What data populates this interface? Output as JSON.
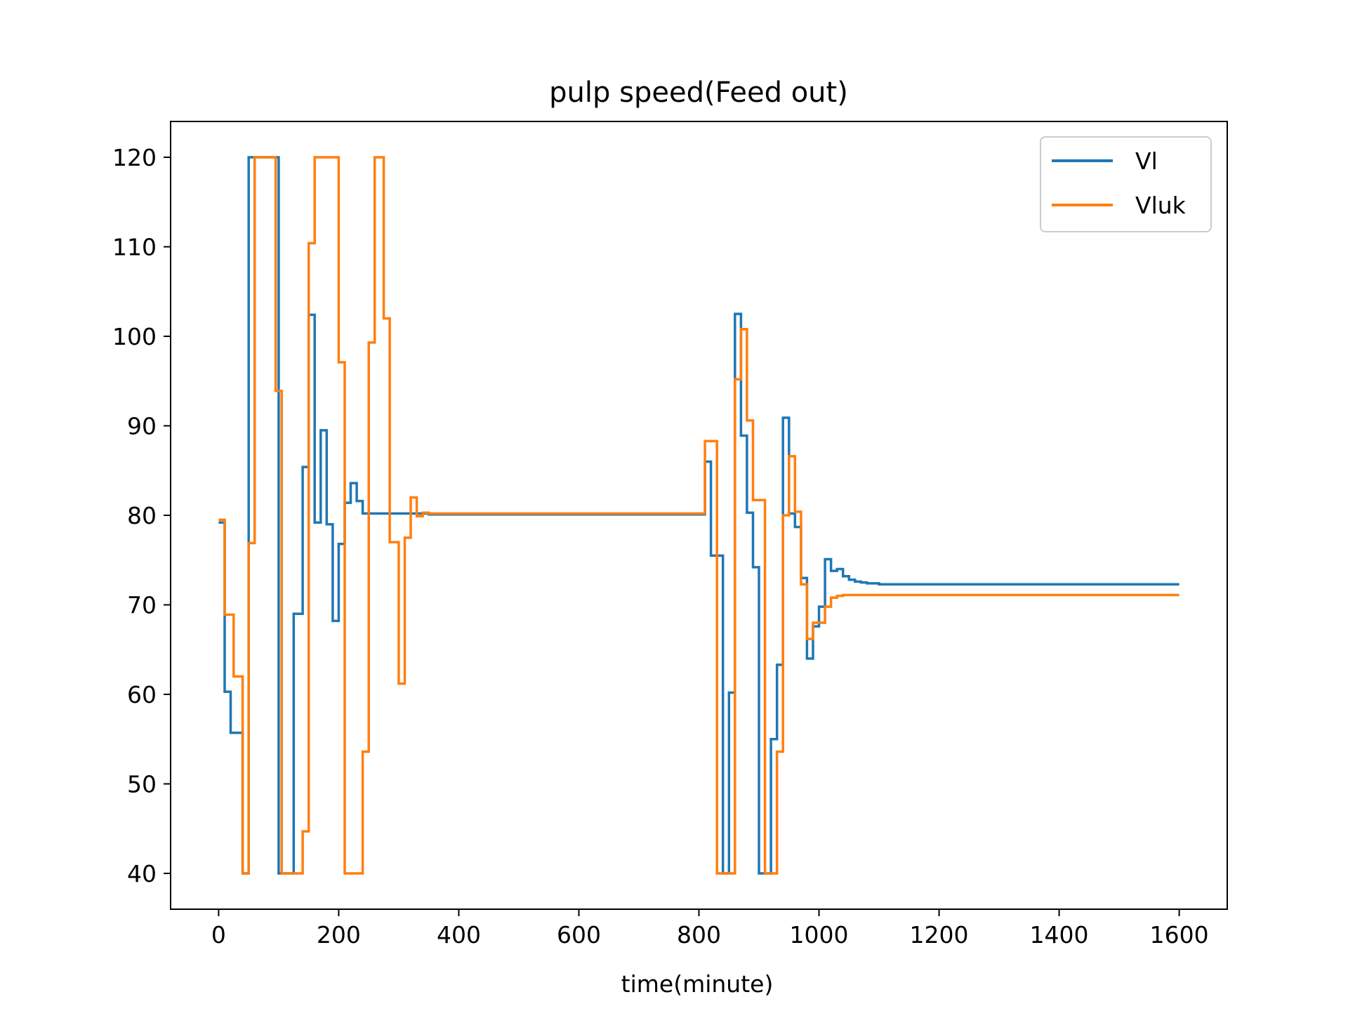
{
  "chart_data": {
    "type": "line",
    "title": "pulp speed(Feed out)",
    "xlabel": "time(minute)",
    "ylabel": "",
    "xlim": [
      -80,
      1680
    ],
    "ylim": [
      36,
      124
    ],
    "xticks": [
      0,
      200,
      400,
      600,
      800,
      1000,
      1200,
      1400,
      1600
    ],
    "yticks": [
      40,
      50,
      60,
      70,
      80,
      90,
      100,
      110,
      120
    ],
    "legend_position": "top-right",
    "grid": false,
    "series": [
      {
        "name": "Vl",
        "color": "#1f77b4",
        "step": true,
        "x": [
          0,
          10,
          20,
          30,
          40,
          50,
          100,
          115,
          125,
          140,
          150,
          160,
          170,
          180,
          190,
          200,
          210,
          220,
          230,
          240,
          250,
          300,
          350,
          400,
          500,
          600,
          700,
          800,
          810,
          820,
          840,
          850,
          860,
          870,
          880,
          890,
          900,
          910,
          920,
          930,
          940,
          950,
          960,
          970,
          980,
          990,
          1000,
          1010,
          1020,
          1030,
          1040,
          1050,
          1060,
          1070,
          1080,
          1100,
          1150,
          1200,
          1300,
          1400,
          1500,
          1600
        ],
        "values": [
          79.2,
          60.3,
          55.7,
          55.7,
          40,
          120,
          40,
          40,
          69,
          85.4,
          102.4,
          79.2,
          89.5,
          79,
          68.2,
          76.8,
          81.4,
          83.6,
          81.6,
          80.2,
          80.2,
          80.2,
          80.1,
          80.1,
          80.1,
          80.1,
          80.1,
          80.1,
          86,
          75.5,
          40,
          60.2,
          102.5,
          88.9,
          80.3,
          74.2,
          40,
          40,
          55,
          63.3,
          90.9,
          80.2,
          78.7,
          73,
          64,
          67.6,
          69.8,
          75.1,
          73.8,
          74,
          73.2,
          72.8,
          72.6,
          72.5,
          72.4,
          72.3,
          72.3,
          72.3,
          72.3,
          72.3,
          72.3,
          72.3
        ]
      },
      {
        "name": "Vluk",
        "color": "#ff7f0e",
        "step": true,
        "x": [
          0,
          10,
          25,
          40,
          50,
          60,
          95,
          105,
          115,
          140,
          150,
          160,
          170,
          200,
          210,
          220,
          240,
          250,
          260,
          275,
          285,
          300,
          310,
          320,
          330,
          340,
          350,
          400,
          500,
          600,
          700,
          800,
          810,
          830,
          860,
          870,
          880,
          890,
          910,
          930,
          940,
          950,
          960,
          970,
          980,
          990,
          1000,
          1010,
          1020,
          1030,
          1040,
          1050,
          1060,
          1070,
          1080,
          1100,
          1200,
          1400,
          1600
        ],
        "values": [
          79.5,
          68.9,
          62,
          40,
          76.9,
          120,
          93.9,
          40,
          40,
          44.7,
          110.4,
          120,
          120,
          97.1,
          40,
          40,
          53.6,
          99.3,
          120,
          102,
          77,
          61.2,
          77.5,
          82,
          79.9,
          80.3,
          80.2,
          80.2,
          80.2,
          80.2,
          80.2,
          80.2,
          88.3,
          40,
          95.2,
          100.8,
          90.6,
          81.7,
          40,
          53.6,
          80,
          86.6,
          80.4,
          72.3,
          66.2,
          68,
          68,
          69.8,
          70.8,
          71,
          71.1,
          71.1,
          71.1,
          71.1,
          71.1,
          71.1,
          71.1,
          71.1,
          71.1
        ]
      }
    ]
  }
}
